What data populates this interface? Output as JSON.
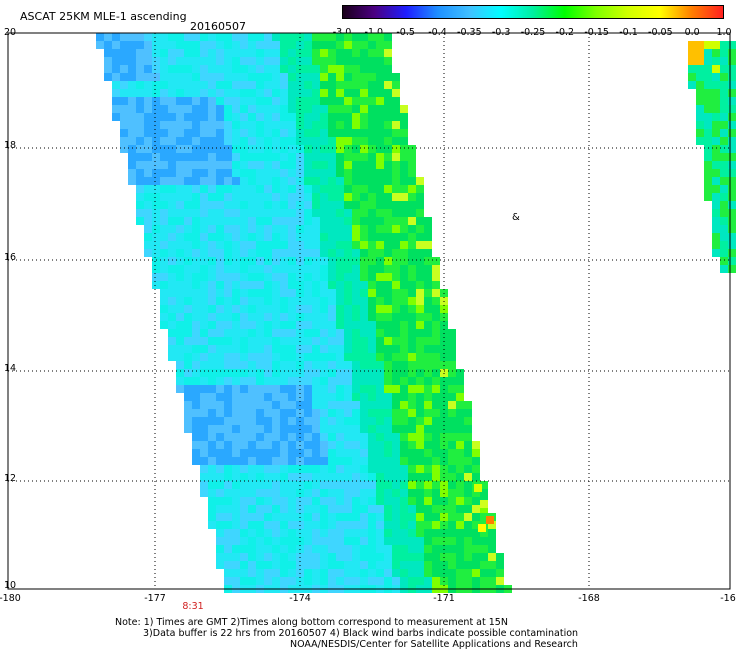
{
  "header": {
    "title": "ASCAT 25KM MLE-1 ascending",
    "date": "20160507"
  },
  "colorbar": {
    "labels": [
      "-3.0",
      "-1.0",
      "-0.5",
      "-0.4",
      "-0.35",
      "-0.3",
      "-0.25",
      "-0.2",
      "-0.15",
      "-0.1",
      "-0.05",
      "0.0",
      "1.0"
    ],
    "colors": [
      "#1a001a",
      "#4b0082",
      "#1e1eff",
      "#1e90ff",
      "#40c0ff",
      "#00ffff",
      "#00f0a0",
      "#00ff00",
      "#7fff00",
      "#d0ff00",
      "#ffff00",
      "#ff8000",
      "#ff2020"
    ]
  },
  "map": {
    "latitude_labels": [
      "20",
      "18",
      "16",
      "14",
      "12",
      "10"
    ],
    "longitude_labels": [
      "-180",
      "-177",
      "-174",
      "-171",
      "-168",
      "-16"
    ],
    "time_label": "8:31",
    "symbol": "&"
  },
  "footer": {
    "note_line1": "Note: 1) Times are GMT 2)Times along bottom correspond to measurement at 15N",
    "note_line2": "3)Data buffer is 22 hrs from 20160507 4) Black wind barbs indicate possible contamination",
    "credit": "NOAA/NESDIS/Center for Satellite Applications and Research"
  }
}
